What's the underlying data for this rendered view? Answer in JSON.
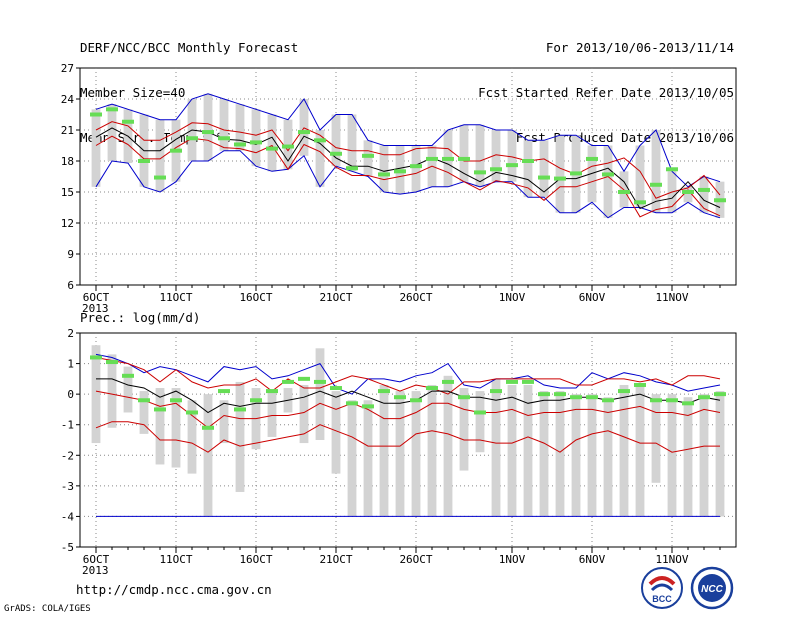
{
  "header": {
    "title": "DERF/NCC/BCC Monthly Forecast",
    "member_size": "Member Size=40",
    "variable": "Mean Surf. Temp.: °C",
    "period": "For 2013/10/06-2013/11/14",
    "started": "Fcst Started Refer Date 2013/10/05",
    "produced": "Fcst Produced Date 2013/10/06"
  },
  "footer": {
    "url": "http://cmdp.ncc.cma.gov.cn",
    "credit": "GrADS: COLA/IGES",
    "logo_left_text": "BCC",
    "logo_right_text": "NCC"
  },
  "colors": {
    "envelope": "#0000cc",
    "spread": "#cc0000",
    "mean": "#000000",
    "box": "#d3d3d3",
    "ensemble_marker": "#66dd55"
  },
  "chart_data": [
    {
      "type": "line",
      "title": "",
      "ylabel": "Mean Surf. Temp.: °C",
      "ylim": [
        6,
        27
      ],
      "yticks": [
        6,
        9,
        12,
        15,
        18,
        21,
        24,
        27
      ],
      "grid": true,
      "x_tick_labels": [
        "6OCT",
        "11OCT",
        "16OCT",
        "21OCT",
        "26OCT",
        "1NOV",
        "6NOV",
        "11NOV"
      ],
      "x_tick_days": [
        0,
        5,
        10,
        15,
        20,
        26,
        31,
        36
      ],
      "year_label": "2013",
      "days": 40,
      "series": [
        {
          "role": "max",
          "values": [
            15.5,
            18,
            17.8,
            15.5,
            15,
            16,
            18,
            18,
            19,
            19,
            17.5,
            17,
            17.2,
            18.5,
            15.5,
            17.5,
            17,
            16.5,
            15,
            14.8,
            15,
            15.5,
            15.5,
            16,
            15.5,
            16,
            16,
            14.5,
            14.5,
            13,
            13,
            14,
            12.5,
            13.5,
            13.5,
            13,
            13,
            14,
            13,
            12.5
          ]
        },
        {
          "role": "min",
          "values": [
            23,
            23.5,
            23,
            22.5,
            22,
            22,
            24,
            24.5,
            24,
            23.5,
            23,
            22.5,
            22,
            24,
            21,
            22.5,
            22.5,
            20,
            19.5,
            19.5,
            19.5,
            19.5,
            21,
            21.5,
            21.5,
            21,
            21,
            20,
            20,
            20.5,
            20.5,
            19.5,
            19.5,
            17,
            19.5,
            21,
            17,
            15.5,
            16.5,
            16
          ]
        },
        {
          "role": "upper",
          "values": [
            21,
            21.8,
            21.4,
            20,
            20,
            20.8,
            21.7,
            21.6,
            21,
            20.8,
            20.5,
            21,
            19,
            21.2,
            20.5,
            19.3,
            19,
            19,
            18.6,
            18.6,
            19.2,
            19.3,
            19.2,
            18,
            18,
            18.6,
            18.4,
            18,
            18.2,
            17.3,
            16.7,
            17.5,
            17.8,
            18.3,
            17,
            14.4,
            15,
            15.4,
            16.6,
            14.7
          ]
        },
        {
          "role": "mean",
          "values": [
            20.3,
            21.2,
            20.4,
            19,
            19,
            20.1,
            21,
            20.8,
            20.1,
            20,
            19.6,
            20.3,
            18,
            20.4,
            19.7,
            18.3,
            17.5,
            17.5,
            17,
            17.3,
            17.6,
            18.3,
            17.7,
            16.8,
            16,
            16.9,
            16.6,
            16.2,
            15,
            16.3,
            16.3,
            16.8,
            17.3,
            16,
            13.4,
            14.1,
            14.4,
            16,
            14.2,
            13.5
          ]
        },
        {
          "role": "lower",
          "values": [
            19.5,
            20.4,
            19.6,
            18.2,
            18.2,
            19.3,
            20.2,
            20,
            19.3,
            19.2,
            18.8,
            19.5,
            17.2,
            19.6,
            18.9,
            17.4,
            16.6,
            16.6,
            16.2,
            16.5,
            16.8,
            17.5,
            16.9,
            16,
            15.2,
            16.1,
            15.8,
            15.4,
            14.2,
            15.5,
            15.5,
            16,
            16.5,
            15.2,
            12.6,
            13.3,
            13.6,
            15.2,
            13.4,
            12.7
          ]
        },
        {
          "role": "ensemble",
          "values": [
            22.5,
            23,
            21.8,
            18,
            16.4,
            19,
            20.2,
            20.8,
            20.2,
            19.6,
            19.8,
            19.2,
            19.4,
            20.8,
            20,
            18.7,
            17.3,
            18.5,
            16.7,
            17,
            17.5,
            18.2,
            18.2,
            18.2,
            16.9,
            17.2,
            17.6,
            18,
            16.4,
            16.3,
            16.8,
            18.2,
            16.7,
            15,
            14,
            15.7,
            17.2,
            15,
            15.2,
            14.2
          ]
        }
      ]
    },
    {
      "type": "line",
      "title": "",
      "ylabel": "Prec.: log(mm/d)",
      "ylim": [
        -5,
        2
      ],
      "yticks": [
        -5,
        -4,
        -3,
        -2,
        -1,
        0,
        1,
        2
      ],
      "grid": true,
      "x_tick_labels": [
        "6OCT",
        "11OCT",
        "16OCT",
        "21OCT",
        "26OCT",
        "1NOV",
        "6NOV",
        "11NOV"
      ],
      "x_tick_days": [
        0,
        5,
        10,
        15,
        20,
        26,
        31,
        36
      ],
      "year_label": "2013",
      "days": 40,
      "series": [
        {
          "role": "max",
          "values": [
            1.3,
            1.2,
            1,
            0.7,
            0.9,
            0.8,
            0.6,
            0.4,
            0.9,
            0.8,
            0.9,
            0.5,
            0.6,
            0.8,
            1,
            0.2,
            0,
            0.5,
            0.5,
            0.4,
            0.6,
            0.7,
            1,
            0.3,
            0.2,
            0.5,
            0.5,
            0.6,
            0.3,
            0.2,
            0.2,
            0.7,
            0.5,
            0.7,
            0.6,
            0.4,
            0.3,
            0.1,
            0.2,
            0.3
          ]
        },
        {
          "role": "min",
          "values": [
            -4,
            -4,
            -4,
            -4,
            -4,
            -4,
            -4,
            -4,
            -4,
            -4,
            -4,
            -4,
            -4,
            -4,
            -4,
            -4,
            -4,
            -4,
            -4,
            -4,
            -4,
            -4,
            -4,
            -4,
            -4,
            -4,
            -4,
            -4,
            -4,
            -4,
            -4,
            -4,
            -4,
            -4,
            -4,
            -4,
            -4,
            -4,
            -4,
            -4
          ]
        },
        {
          "role": "upper",
          "values": [
            1.2,
            1.1,
            1,
            0.8,
            0.4,
            0.8,
            0.4,
            0.2,
            0.3,
            0.3,
            0.5,
            0.1,
            0.5,
            0.2,
            0.2,
            0.4,
            0.6,
            0.5,
            0.3,
            0.1,
            0.3,
            0.2,
            0,
            0.4,
            0.4,
            0.5,
            0.5,
            0.5,
            0.5,
            0.5,
            0.3,
            0.3,
            0.5,
            0.5,
            0.4,
            0.5,
            0.3,
            0.6,
            0.6,
            0.5
          ]
        },
        {
          "role": "mean",
          "values": [
            0.5,
            0.5,
            0.3,
            0.2,
            -0.1,
            0.1,
            -0.2,
            -0.6,
            -0.3,
            -0.4,
            -0.3,
            -0.3,
            -0.2,
            -0.1,
            0.1,
            -0.1,
            0.1,
            -0.1,
            -0.3,
            -0.3,
            -0.2,
            0.1,
            0.1,
            -0.1,
            -0.1,
            -0.2,
            -0.1,
            -0.3,
            -0.2,
            -0.2,
            -0.1,
            -0.1,
            -0.2,
            -0.1,
            0,
            -0.2,
            -0.2,
            -0.3,
            -0.1,
            -0.2
          ]
        },
        {
          "role": "lower",
          "values": [
            0.1,
            0,
            -0.1,
            -0.2,
            -0.4,
            -0.3,
            -0.7,
            -1.1,
            -0.7,
            -0.8,
            -0.8,
            -0.7,
            -0.7,
            -0.6,
            -0.3,
            -0.5,
            -0.3,
            -0.5,
            -0.8,
            -0.8,
            -0.6,
            -0.3,
            -0.3,
            -0.5,
            -0.6,
            -0.6,
            -0.5,
            -0.7,
            -0.6,
            -0.6,
            -0.5,
            -0.5,
            -0.6,
            -0.5,
            -0.4,
            -0.6,
            -0.6,
            -0.7,
            -0.5,
            -0.6
          ]
        },
        {
          "role": "outer_low",
          "values": [
            -1.1,
            -0.9,
            -0.9,
            -1,
            -1.5,
            -1.5,
            -1.6,
            -1.9,
            -1.5,
            -1.7,
            -1.6,
            -1.5,
            -1.4,
            -1.3,
            -1,
            -1.2,
            -1.4,
            -1.7,
            -1.7,
            -1.7,
            -1.3,
            -1.2,
            -1.3,
            -1.5,
            -1.5,
            -1.6,
            -1.6,
            -1.4,
            -1.6,
            -1.9,
            -1.5,
            -1.3,
            -1.2,
            -1.4,
            -1.6,
            -1.6,
            -1.9,
            -1.8,
            -1.7,
            -1.7
          ]
        },
        {
          "role": "box_top",
          "values": [
            1.6,
            1.3,
            0.9,
            0.1,
            0.2,
            0.2,
            -0.2,
            0,
            -0.2,
            0.4,
            0.2,
            0.1,
            0.2,
            0.3,
            1.5,
            0.1,
            -0.2,
            -0.2,
            0.3,
            0.1,
            0.1,
            0.3,
            0.6,
            0.2,
            0.1,
            0.5,
            0.3,
            0.3,
            0.1,
            0.1,
            0,
            0,
            -0.1,
            0.3,
            0.3,
            0,
            0,
            -0.1,
            0,
            0.1
          ]
        },
        {
          "role": "box_bottom",
          "values": [
            -1.6,
            -1.1,
            -0.6,
            -1.3,
            -2.3,
            -2.4,
            -2.6,
            -4,
            -1.6,
            -3.2,
            -1.8,
            -1.4,
            -0.6,
            -1.6,
            -1.5,
            -2.6,
            -4,
            -4,
            -4,
            -4,
            -4,
            -4,
            -4,
            -2.5,
            -1.9,
            -4,
            -4,
            -4,
            -4,
            -4,
            -4,
            -4,
            -4,
            -4,
            -4,
            -2.9,
            -4,
            -4,
            -4,
            -4
          ]
        },
        {
          "role": "ensemble",
          "values": [
            1.2,
            1.05,
            0.6,
            -0.2,
            -0.5,
            -0.2,
            -0.6,
            -1.1,
            0.1,
            -0.5,
            -0.2,
            0.1,
            0.4,
            0.5,
            0.4,
            0.2,
            -0.3,
            -0.4,
            0.1,
            -0.1,
            -0.2,
            0.2,
            0.4,
            -0.1,
            -0.6,
            0.1,
            0.4,
            0.4,
            0,
            0,
            -0.1,
            -0.1,
            -0.2,
            0.1,
            0.3,
            -0.2,
            -0.2,
            -0.3,
            -0.1,
            0
          ]
        }
      ],
      "ylabel_position": "above-left"
    }
  ]
}
